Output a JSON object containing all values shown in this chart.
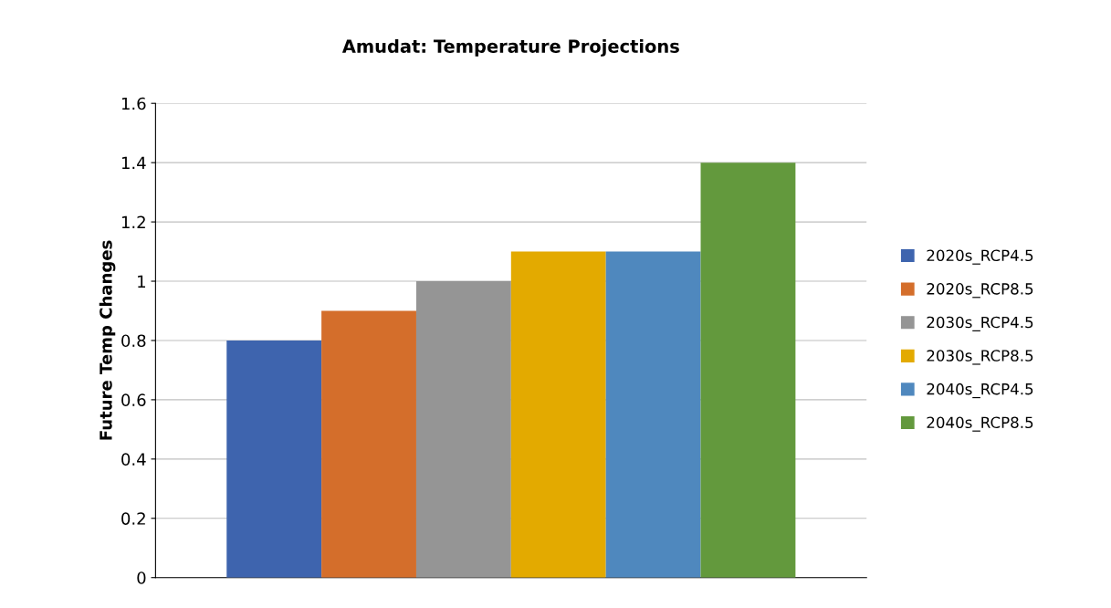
{
  "chart_data": {
    "type": "bar",
    "title": "Amudat: Temperature Projections",
    "ylabel": "Future Temp Changes",
    "categories": [
      null
    ],
    "series": [
      {
        "name": "2020s_RCP4.5",
        "color": "#3e64ae",
        "values": [
          0.8
        ]
      },
      {
        "name": "2020s_RCP8.5",
        "color": "#d46e2b",
        "values": [
          0.9
        ]
      },
      {
        "name": "2030s_RCP4.5",
        "color": "#959595",
        "values": [
          1.0
        ]
      },
      {
        "name": "2030s_RCP8.5",
        "color": "#e3aa00",
        "values": [
          1.1
        ]
      },
      {
        "name": "2040s_RCP4.5",
        "color": "#4f88be",
        "values": [
          1.1
        ]
      },
      {
        "name": "2040s_RCP8.5",
        "color": "#63993d",
        "values": [
          1.4
        ]
      }
    ],
    "ylim": [
      0,
      1.6
    ],
    "yticks": [
      0,
      0.2,
      0.4,
      0.6,
      0.8,
      1,
      1.2,
      1.4,
      1.6
    ],
    "grid": "y",
    "legend": "right"
  }
}
